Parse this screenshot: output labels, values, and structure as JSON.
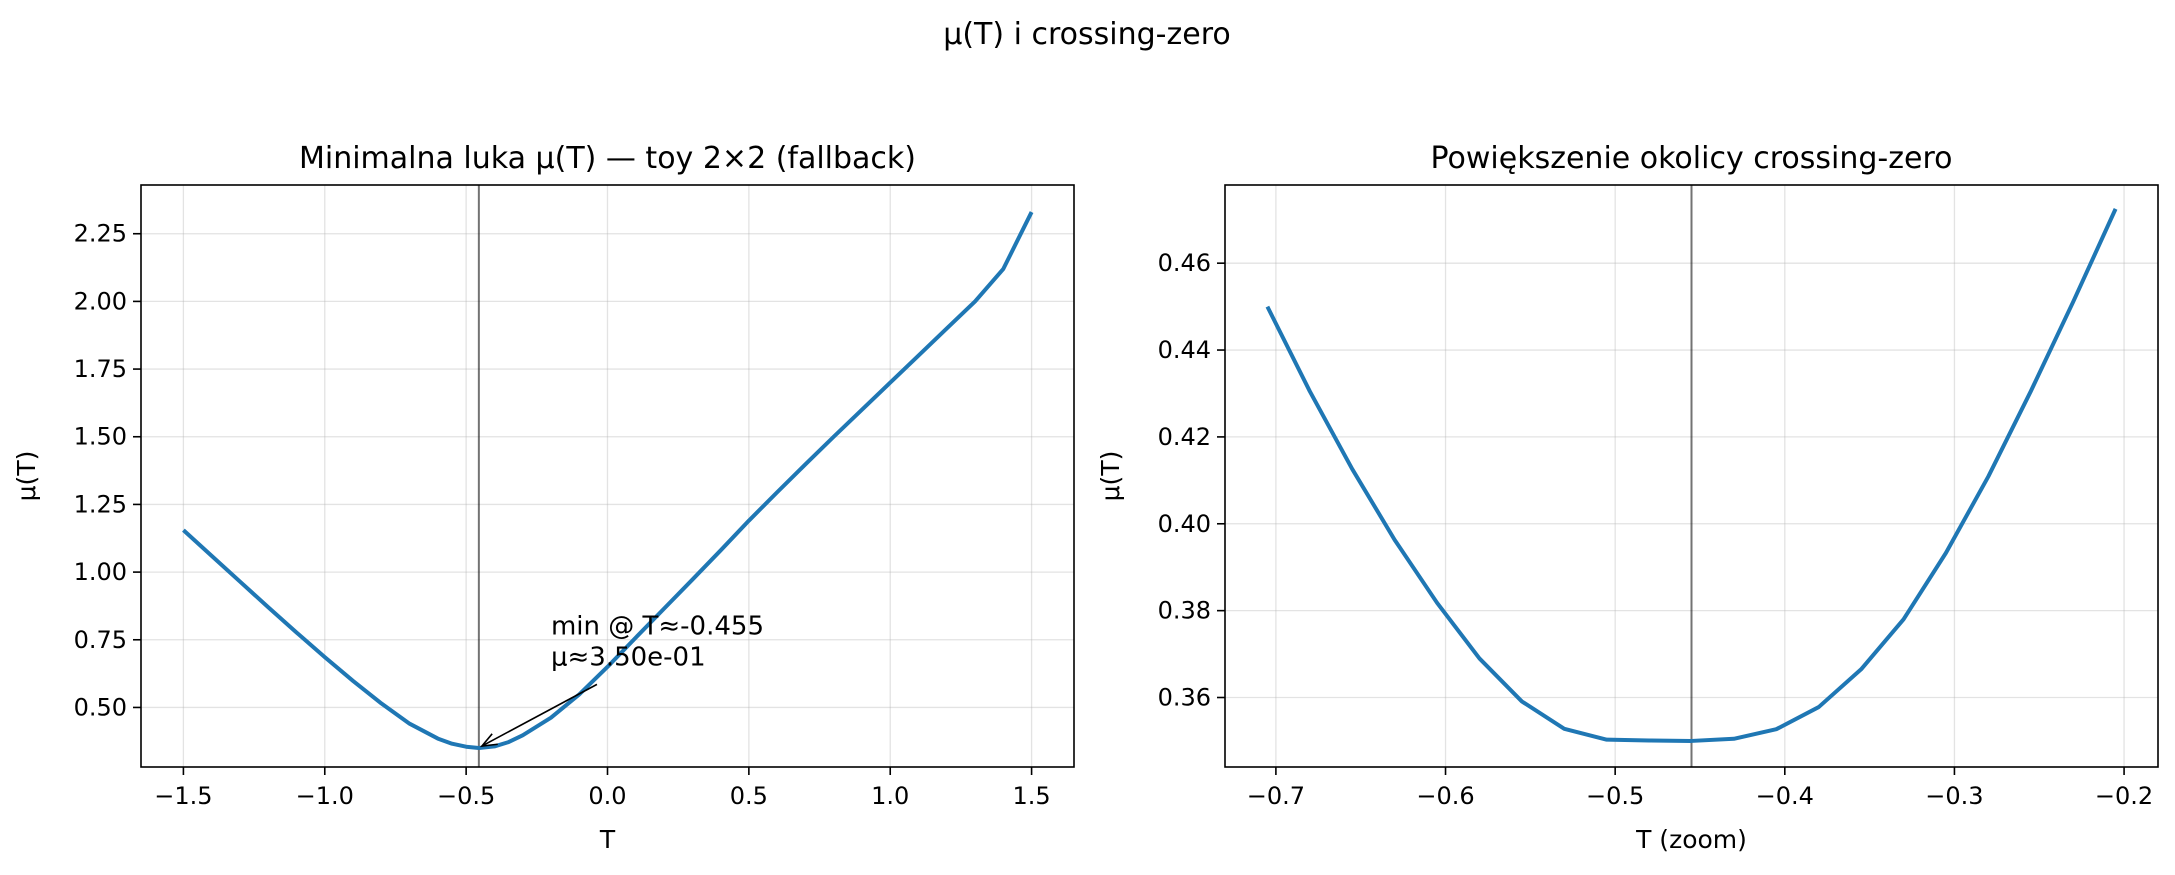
{
  "figure": {
    "suptitle": "μ(T) i crossing-zero"
  },
  "chart_data": [
    {
      "type": "line",
      "title": "Minimalna luka μ(T) — toy 2×2 (fallback)",
      "xlabel": "T",
      "ylabel": "μ(T)",
      "xlim": [
        -1.65,
        1.65
      ],
      "ylim": [
        0.28,
        2.43
      ],
      "xticks": [
        -1.5,
        -1.0,
        -0.5,
        0.0,
        0.5,
        1.0,
        1.5
      ],
      "xtick_labels": [
        "−1.5",
        "−1.0",
        "−0.5",
        "0.0",
        "0.5",
        "1.0",
        "1.5"
      ],
      "yticks": [
        0.5,
        0.75,
        1.0,
        1.25,
        1.5,
        1.75,
        2.0,
        2.25
      ],
      "ytick_labels": [
        "0.50",
        "0.75",
        "1.00",
        "1.25",
        "1.50",
        "1.75",
        "2.00",
        "2.25"
      ],
      "grid": true,
      "series": [
        {
          "color": "#1f77b4",
          "x": [
            -1.5,
            -1.4,
            -1.3,
            -1.2,
            -1.1,
            -1.0,
            -0.9,
            -0.8,
            -0.7,
            -0.6,
            -0.55,
            -0.5,
            -0.455,
            -0.4,
            -0.35,
            -0.3,
            -0.2,
            -0.1,
            0.0,
            0.1,
            0.2,
            0.3,
            0.4,
            0.5,
            0.6,
            0.7,
            0.8,
            0.9,
            1.0,
            1.1,
            1.2,
            1.3,
            1.4,
            1.5
          ],
          "y": [
            1.155,
            1.06,
            0.965,
            0.87,
            0.777,
            0.686,
            0.598,
            0.515,
            0.44,
            0.385,
            0.366,
            0.355,
            0.35,
            0.356,
            0.372,
            0.397,
            0.462,
            0.548,
            0.65,
            0.758,
            0.865,
            0.972,
            1.08,
            1.19,
            1.295,
            1.398,
            1.5,
            1.6,
            1.7,
            1.8,
            1.9,
            2.0,
            2.12,
            2.33
          ]
        }
      ],
      "vline_x": -0.455,
      "annotation": {
        "lines": [
          "min @ T≈-0.455",
          "μ≈3.50e-01"
        ],
        "text_x": -0.2,
        "text_y": 0.77,
        "arrow_to_x": -0.455,
        "arrow_to_y": 0.35
      }
    },
    {
      "type": "line",
      "title": "Powiększenie okolicy crossing-zero",
      "xlabel": "T (zoom)",
      "ylabel": "μ(T)",
      "xlim": [
        -0.73,
        -0.18
      ],
      "ylim": [
        0.344,
        0.478
      ],
      "xticks": [
        -0.7,
        -0.6,
        -0.5,
        -0.4,
        -0.3,
        -0.2
      ],
      "xtick_labels": [
        "−0.7",
        "−0.6",
        "−0.5",
        "−0.4",
        "−0.3",
        "−0.2"
      ],
      "yticks": [
        0.36,
        0.38,
        0.4,
        0.42,
        0.44,
        0.46
      ],
      "ytick_labels": [
        "0.36",
        "0.38",
        "0.40",
        "0.42",
        "0.44",
        "0.46"
      ],
      "grid": true,
      "series": [
        {
          "color": "#1f77b4",
          "x": [
            -0.705,
            -0.68,
            -0.655,
            -0.63,
            -0.605,
            -0.58,
            -0.555,
            -0.53,
            -0.505,
            -0.48,
            -0.455,
            -0.43,
            -0.405,
            -0.38,
            -0.355,
            -0.33,
            -0.305,
            -0.28,
            -0.255,
            -0.23,
            -0.205
          ],
          "y": [
            0.45,
            0.4305,
            0.4126,
            0.3963,
            0.3818,
            0.369,
            0.3591,
            0.3528,
            0.3503,
            0.3501,
            0.35,
            0.3505,
            0.3527,
            0.3578,
            0.3665,
            0.378,
            0.3933,
            0.4109,
            0.4305,
            0.4511,
            0.4725
          ]
        }
      ],
      "vline_x": -0.455
    }
  ]
}
